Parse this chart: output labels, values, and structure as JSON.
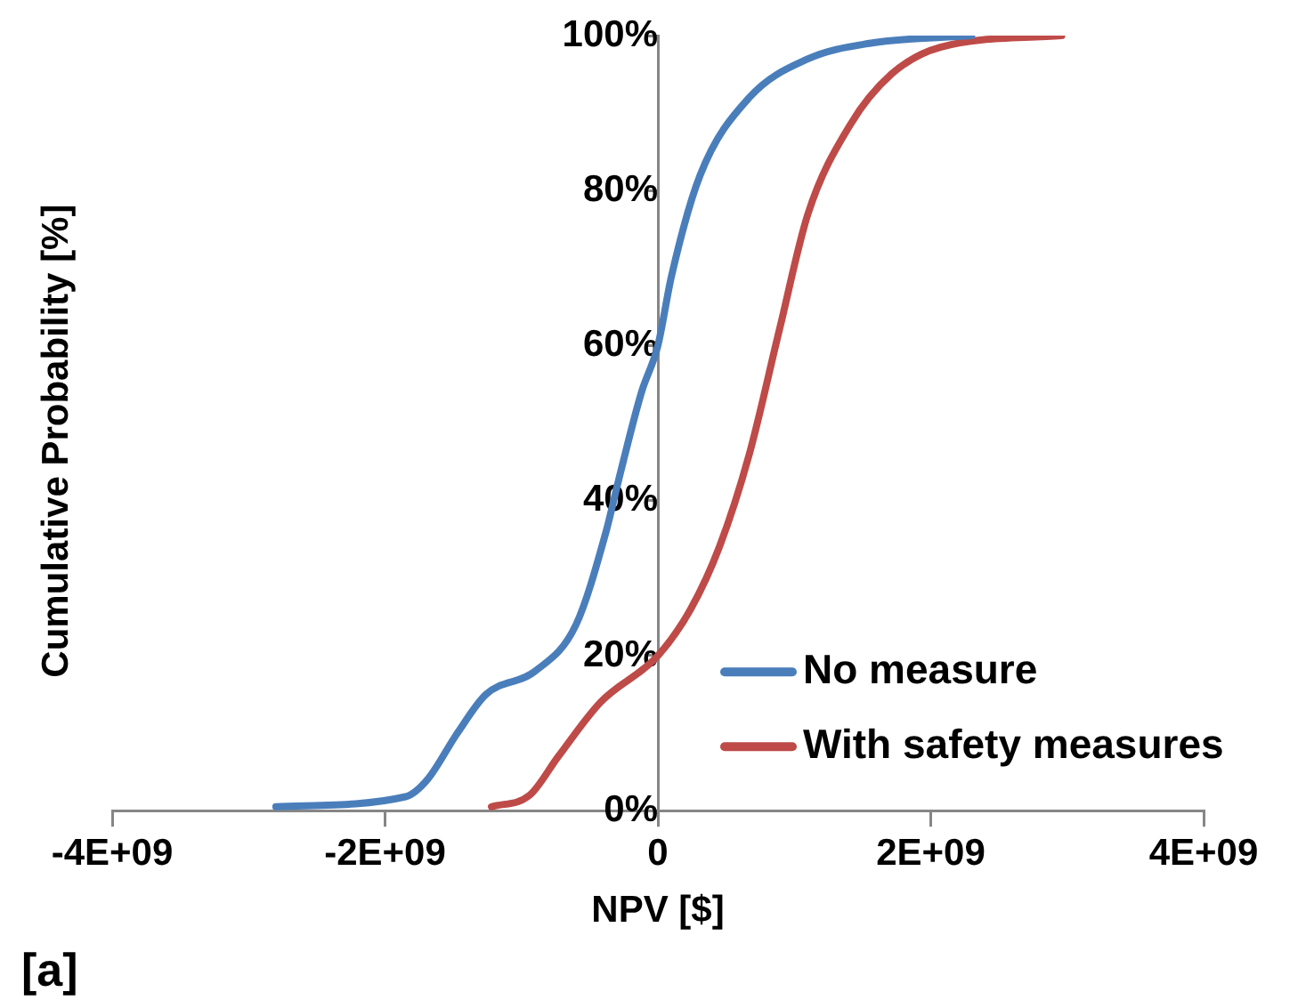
{
  "chart_data": {
    "type": "line",
    "xlabel": "NPV [$]",
    "ylabel": "Cumulative Probability [%]",
    "annotations": [
      "[a]"
    ],
    "series": [
      {
        "name": "No measure",
        "color": "#4a7ebb",
        "x": [
          -2800000000,
          -1850000000,
          -1690000000,
          -1470000000,
          -1260000000,
          -900000000,
          -600000000,
          -380000000,
          -290000000,
          -120000000,
          0,
          100000000,
          310000000,
          670000000,
          1100000000,
          1550000000,
          2300000000
        ],
        "values": [
          0.5,
          1.8,
          4,
          10,
          15,
          18,
          24,
          36,
          42.5,
          54,
          60,
          69,
          82,
          92,
          97,
          99,
          100
        ]
      },
      {
        "name": "With safety measures",
        "color": "#be4b48",
        "x": [
          -1220000000,
          -940000000,
          -730000000,
          -420000000,
          0,
          240000000,
          450000000,
          670000000,
          890000000,
          1100000000,
          1410000000,
          1710000000,
          2070000000,
          2960000000
        ],
        "values": [
          0.5,
          2,
          7,
          14,
          20,
          26,
          34,
          46,
          62,
          77,
          88.5,
          95,
          98.5,
          100
        ]
      }
    ],
    "xlim": [
      -4000000000,
      4000000000
    ],
    "xticks": [
      {
        "value": -4000000000,
        "label": "-4E+09"
      },
      {
        "value": -2000000000,
        "label": "-2E+09"
      },
      {
        "value": 0,
        "label": "0"
      },
      {
        "value": 2000000000,
        "label": "2E+09"
      },
      {
        "value": 4000000000,
        "label": "4E+09"
      }
    ],
    "ylim": [
      0,
      100
    ],
    "yticks": [
      {
        "value": 0,
        "label": "0%"
      },
      {
        "value": 20,
        "label": "20%"
      },
      {
        "value": 40,
        "label": "40%"
      },
      {
        "value": 60,
        "label": "60%"
      },
      {
        "value": 80,
        "label": "80%"
      },
      {
        "value": 100,
        "label": "100%"
      }
    ],
    "grid": false,
    "legend": "bottom right",
    "marker": "none",
    "line_style": "solid"
  }
}
